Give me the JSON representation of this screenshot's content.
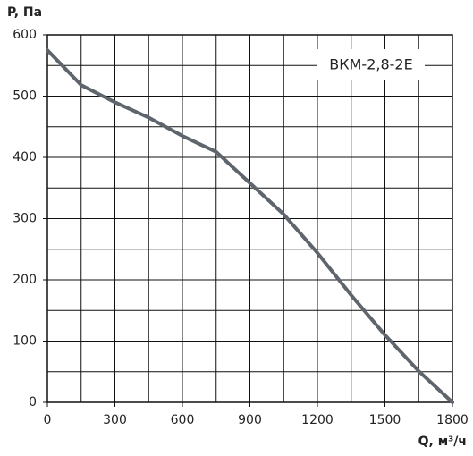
{
  "chart_data": {
    "type": "line",
    "label": "ВКМ-2,8-2Е",
    "y_axis_label": "P, Па",
    "x_axis_label": "Q, м³/ч",
    "x": [
      0,
      150,
      300,
      450,
      600,
      750,
      900,
      1050,
      1200,
      1350,
      1500,
      1650,
      1800
    ],
    "series": [
      {
        "name": "ВКМ-2,8-2Е",
        "color": "#5f656c",
        "values": [
          575,
          518,
          490,
          465,
          435,
          409,
          358,
          307,
          244,
          175,
          110,
          51,
          0
        ]
      }
    ],
    "xlim": [
      0,
      1800
    ],
    "ylim": [
      0,
      600
    ],
    "xticks": [
      0,
      300,
      600,
      900,
      1200,
      1500,
      1800
    ],
    "yticks": [
      0,
      100,
      200,
      300,
      400,
      500,
      600
    ],
    "xgrid": [
      0,
      150,
      300,
      450,
      600,
      750,
      900,
      1050,
      1200,
      1350,
      1500,
      1650,
      1800
    ],
    "ygrid": [
      0,
      50,
      100,
      150,
      200,
      250,
      300,
      350,
      400,
      450,
      500,
      550,
      600
    ],
    "grid": true
  }
}
